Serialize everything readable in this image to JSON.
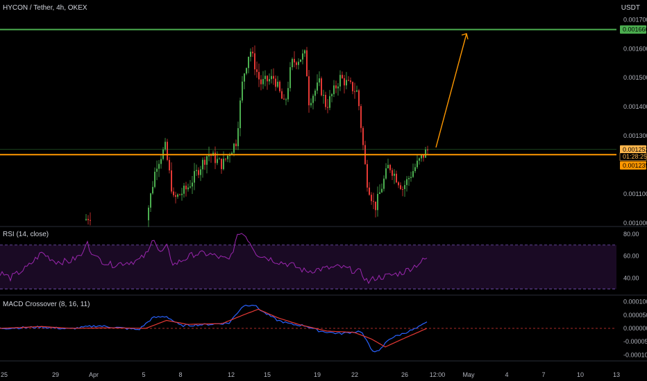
{
  "header": {
    "symbol_title": "HYCON / Tether, 4h, OKEX",
    "currency_toggle": "USDT"
  },
  "chart_data": [
    {
      "type": "candlestick",
      "title": "HYCON / Tether, 4h, OKEX",
      "ylim": [
        0.00099,
        0.00172
      ],
      "y_ticks": [
        "0.001700",
        "0.001600",
        "0.001500",
        "0.001400",
        "0.001300",
        "0.001100",
        "0.001000"
      ],
      "x_ticks": [
        "25",
        "29",
        "Apr",
        "5",
        "8",
        "12",
        "15",
        "19",
        "22",
        "26",
        "12:00",
        "May",
        "4",
        "7",
        "10",
        "13"
      ],
      "horizontal_lines": [
        {
          "value": 0.001666,
          "label": "0.001666",
          "color": "#4caf50"
        },
        {
          "value": 0.001235,
          "label": "0.001235",
          "color": "#ff9800"
        }
      ],
      "last_price": {
        "value": 0.001253,
        "label": "0.001253",
        "countdown": "01:28:25"
      },
      "projection_arrow": {
        "from": 0.00126,
        "to": 0.001666,
        "color": "#ff9800"
      },
      "colors": {
        "up": "#4caf50",
        "down": "#e53935"
      }
    },
    {
      "type": "line",
      "title": "RSI (14, close)",
      "ylim": [
        25,
        85
      ],
      "y_ticks": [
        "80.00",
        "60.00",
        "40.00"
      ],
      "band": [
        30,
        70
      ],
      "color": "#9c27b0"
    },
    {
      "type": "line",
      "title": "MACD Crossover (8, 16, 11)",
      "ylim": [
        -0.00012,
        0.00012
      ],
      "y_ticks": [
        "0.000100",
        "0.000050",
        "0.000000",
        "-0.000050",
        "-0.000100"
      ],
      "series": [
        {
          "color": "#2962ff"
        },
        {
          "color": "#e53935"
        }
      ]
    }
  ]
}
